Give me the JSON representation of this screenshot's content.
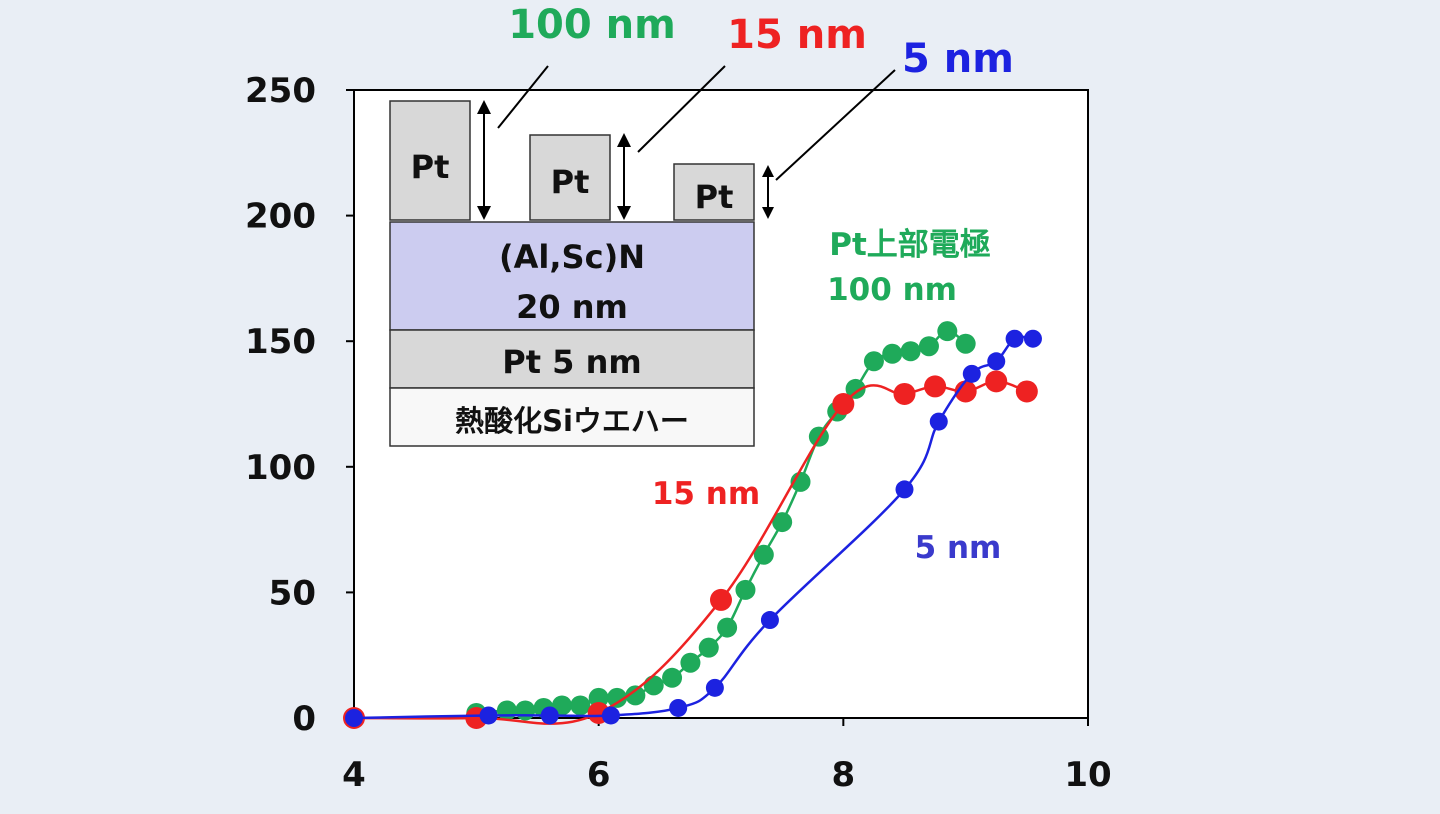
{
  "chart_data": {
    "type": "scatter",
    "title": "",
    "xlabel": "",
    "ylabel": "",
    "xlim": [
      4,
      10
    ],
    "ylim": [
      0,
      250
    ],
    "x_ticks": [
      "4",
      "6",
      "8",
      "10"
    ],
    "y_ticks": [
      "0",
      "50",
      "100",
      "150",
      "200",
      "250"
    ],
    "grid": false,
    "series": [
      {
        "name": "Pt上部電極 100 nm",
        "color": "#1faa5a",
        "x": [
          5.0,
          5.25,
          5.4,
          5.55,
          5.7,
          5.85,
          6.0,
          6.15,
          6.3,
          6.45,
          6.6,
          6.75,
          6.9,
          7.05,
          7.2,
          7.35,
          7.5,
          7.65,
          7.8,
          7.95,
          8.1,
          8.25,
          8.4,
          8.55,
          8.7,
          8.85,
          9.0
        ],
        "y": [
          2,
          3,
          3,
          4,
          5,
          5,
          8,
          8,
          9,
          13,
          16,
          22,
          28,
          36,
          51,
          65,
          78,
          94,
          112,
          122,
          131,
          142,
          145,
          146,
          148,
          154,
          149
        ]
      },
      {
        "name": "15 nm",
        "color": "#ee2222",
        "x": [
          4.0,
          5.0,
          6.0,
          7.0,
          8.0,
          8.5,
          8.75,
          9.0,
          9.25,
          9.5
        ],
        "y": [
          0,
          0,
          2,
          47,
          125,
          129,
          132,
          130,
          134,
          130
        ]
      },
      {
        "name": "5 nm",
        "color": "#1c22e0",
        "x": [
          4.0,
          5.1,
          5.6,
          6.1,
          6.65,
          6.95,
          7.4,
          8.5,
          8.78,
          9.05,
          9.25,
          9.4,
          9.55
        ],
        "y": [
          0,
          1,
          1,
          1,
          4,
          12,
          39,
          91,
          118,
          137,
          142,
          151,
          151
        ]
      }
    ]
  },
  "annotations": {
    "label_15nm": "15 nm",
    "label_5nm": "5 nm",
    "label_top_100nm": "100 nm",
    "label_top_15nm": "15 nm",
    "label_top_5nm": "5 nm",
    "label_green_line1": "Pt上部電極",
    "label_green_line2": "100 nm"
  },
  "inset": {
    "pt_block_label": "Pt",
    "alscn_line1": "(Al,Sc)N",
    "alscn_line2": "20 nm",
    "bottom_pt": "Pt 5 nm",
    "substrate": "熱酸化Siウエハー"
  }
}
